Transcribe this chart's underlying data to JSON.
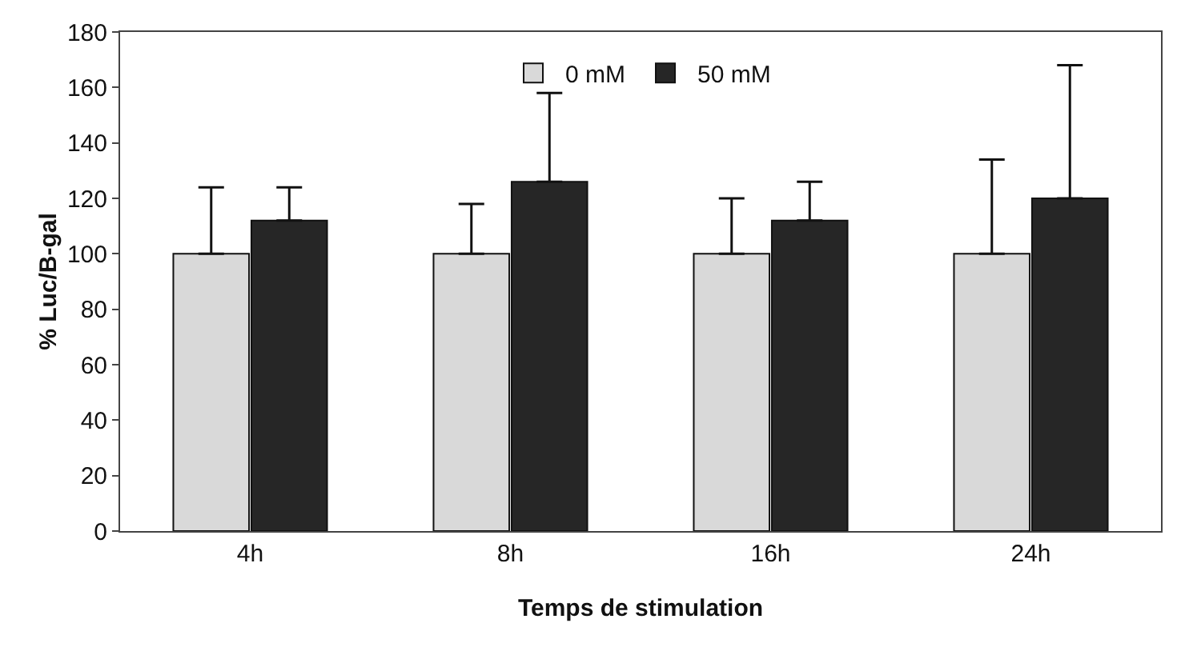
{
  "chart_data": {
    "type": "bar",
    "xlabel": "Temps de stimulation",
    "ylabel": "% Luc/B-gal",
    "categories": [
      "4h",
      "8h",
      "16h",
      "24h"
    ],
    "series": [
      {
        "name": "0 mM",
        "color": "#d9d9d9",
        "values": [
          100,
          100,
          100,
          100
        ],
        "errors": [
          [
            100,
            124
          ],
          [
            100,
            118
          ],
          [
            100,
            120
          ],
          [
            100,
            134
          ]
        ]
      },
      {
        "name": "50 mM",
        "color": "#262626",
        "values": [
          112,
          126,
          112,
          120
        ],
        "errors": [
          [
            112,
            124
          ],
          [
            126,
            158
          ],
          [
            112,
            126
          ],
          [
            120,
            168
          ]
        ]
      }
    ],
    "ylim": [
      0,
      180
    ],
    "yticks": [
      0,
      20,
      40,
      60,
      80,
      100,
      120,
      140,
      160,
      180
    ],
    "grid": false,
    "legend": "top"
  }
}
